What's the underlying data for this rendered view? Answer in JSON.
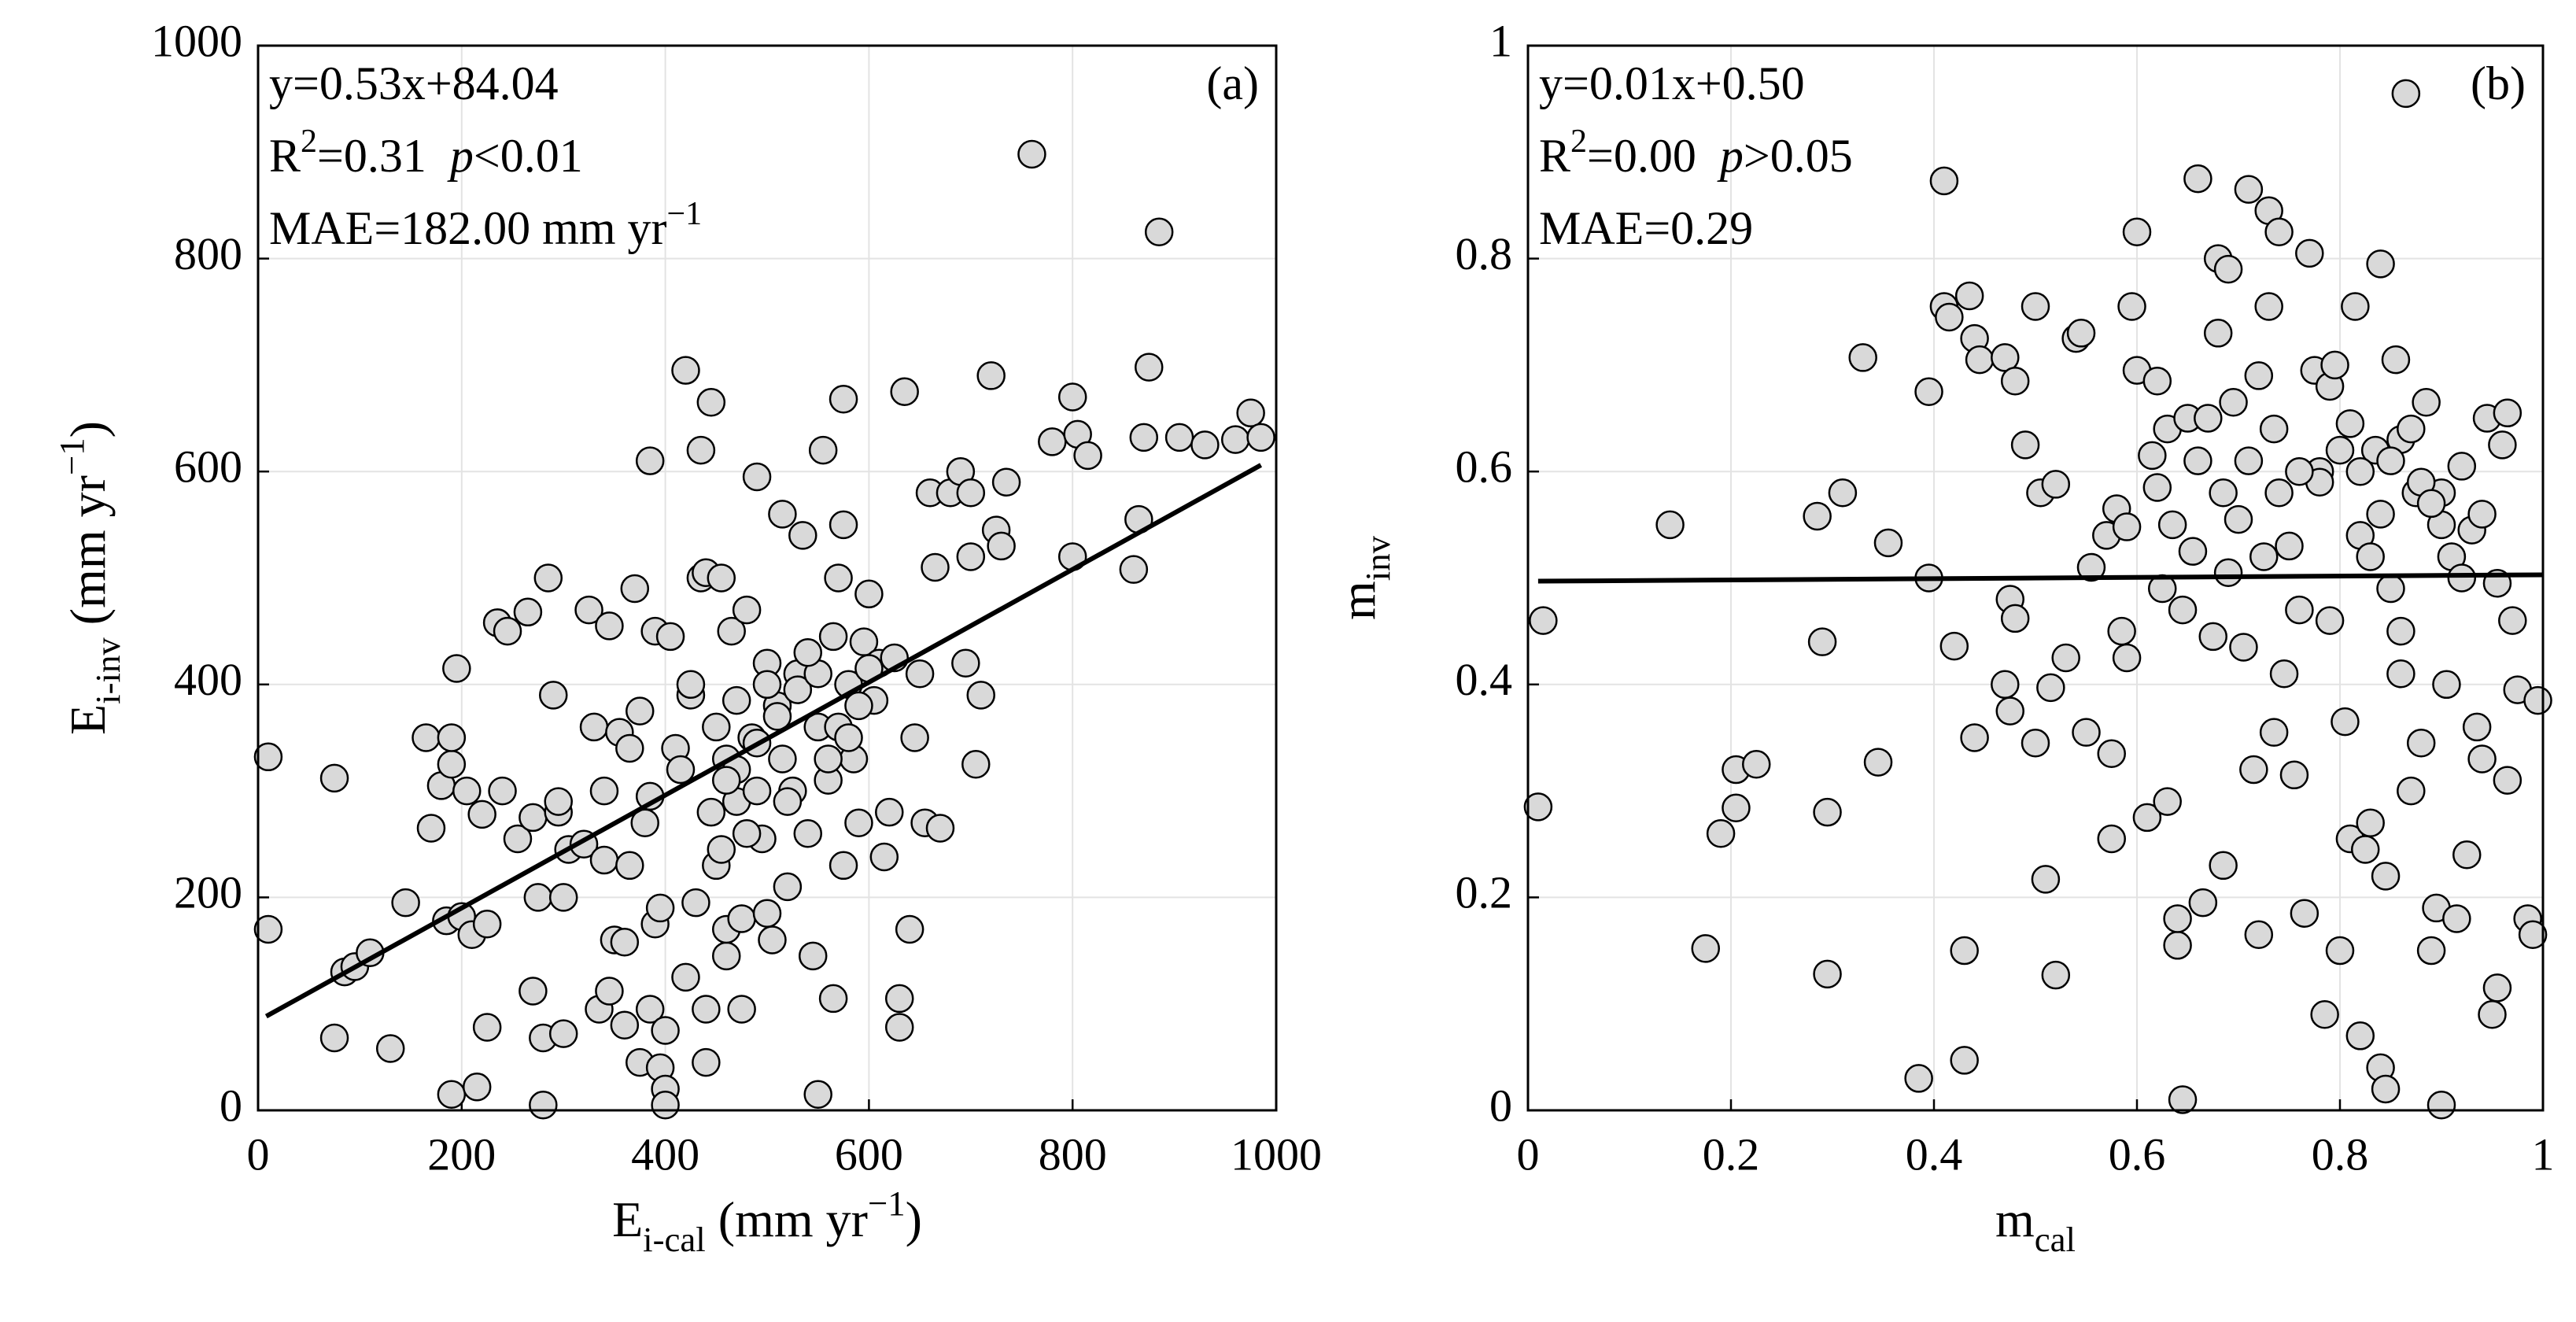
{
  "chart_data": [
    {
      "type": "scatter",
      "panel_label": "(a)",
      "annotations": [
        [
          {
            "text": "y=0.53x+84.04"
          }
        ],
        [
          {
            "text": "R"
          },
          {
            "text": "2",
            "style": "sup"
          },
          {
            "text": "=0.31  "
          },
          {
            "text": "p",
            "style": "italic"
          },
          {
            "text": "<0.01"
          }
        ],
        [
          {
            "text": "MAE=182.00 mm yr"
          },
          {
            "text": "−1",
            "style": "sup"
          }
        ]
      ],
      "xlabel": [
        {
          "text": "E"
        },
        {
          "text": "i-cal",
          "style": "sub"
        },
        {
          "text": " (mm yr"
        },
        {
          "text": "−1",
          "style": "sup"
        },
        {
          "text": ")"
        }
      ],
      "ylabel": [
        {
          "text": "E"
        },
        {
          "text": "i-inv",
          "style": "sub"
        },
        {
          "text": " (mm yr"
        },
        {
          "text": "−1",
          "style": "sup"
        },
        {
          "text": ")"
        }
      ],
      "xlim": [
        0,
        1000
      ],
      "ylim": [
        0,
        1000
      ],
      "xticks": [
        0,
        200,
        400,
        600,
        800,
        1000
      ],
      "yticks": [
        0,
        200,
        400,
        600,
        800,
        1000
      ],
      "grid": true,
      "marker_color": "#d9d9d9",
      "fit": {
        "x": [
          8,
          985
        ],
        "values": [
          88.28,
          606.09
        ],
        "color": "#000000"
      },
      "series": [
        {
          "x": [
            10,
            10,
            75,
            75,
            85,
            95,
            110,
            130,
            145,
            165,
            170,
            180,
            185,
            190,
            190,
            190,
            195,
            200,
            205,
            210,
            215,
            220,
            225,
            225,
            235,
            240,
            245,
            255,
            265,
            270,
            270,
            275,
            280,
            280,
            285,
            290,
            295,
            295,
            300,
            300,
            305,
            320,
            325,
            330,
            335,
            340,
            340,
            345,
            345,
            350,
            355,
            360,
            360,
            365,
            365,
            370,
            375,
            375,
            380,
            385,
            385,
            385,
            390,
            390,
            395,
            395,
            400,
            400,
            400,
            405,
            410,
            415,
            420,
            420,
            425,
            425,
            430,
            435,
            435,
            440,
            440,
            440,
            445,
            445,
            450,
            450,
            455,
            455,
            460,
            460,
            460,
            465,
            470,
            470,
            475,
            475,
            480,
            485,
            490,
            490,
            495,
            500,
            500,
            505,
            510,
            515,
            515,
            520,
            525,
            530,
            535,
            540,
            545,
            550,
            550,
            555,
            560,
            565,
            565,
            570,
            575,
            575,
            575,
            580,
            585,
            590,
            595,
            600,
            605,
            610,
            615,
            620,
            625,
            630,
            630,
            635,
            640,
            645,
            650,
            655,
            660,
            665,
            670,
            680,
            690,
            695,
            700,
            700,
            705,
            710,
            720,
            725,
            730,
            735,
            760,
            780,
            800,
            800,
            805,
            815,
            860,
            865,
            870,
            875,
            885,
            905,
            930,
            960,
            975,
            985,
            470,
            490,
            510,
            530,
            550,
            570,
            590,
            480,
            520,
            560,
            500,
            540,
            580,
            460,
            600
          ],
          "values": [
            332,
            170,
            312,
            68,
            130,
            135,
            148,
            58,
            195,
            350,
            265,
            305,
            178,
            15,
            325,
            350,
            415,
            182,
            300,
            165,
            22,
            278,
            78,
            175,
            458,
            300,
            450,
            255,
            468,
            112,
            275,
            200,
            5,
            68,
            500,
            390,
            280,
            290,
            200,
            72,
            245,
            250,
            470,
            360,
            95,
            235,
            300,
            455,
            112,
            160,
            355,
            80,
            158,
            340,
            230,
            490,
            45,
            375,
            270,
            295,
            610,
            95,
            175,
            450,
            190,
            40,
            20,
            5,
            75,
            445,
            340,
            320,
            695,
            125,
            390,
            400,
            195,
            620,
            500,
            45,
            95,
            505,
            665,
            280,
            230,
            360,
            245,
            500,
            145,
            170,
            330,
            450,
            290,
            385,
            95,
            180,
            470,
            350,
            300,
            595,
            255,
            185,
            420,
            160,
            380,
            560,
            330,
            210,
            300,
            410,
            540,
            260,
            145,
            15,
            360,
            620,
            310,
            445,
            105,
            500,
            230,
            550,
            668,
            400,
            330,
            270,
            440,
            485,
            385,
            420,
            238,
            280,
            425,
            105,
            78,
            675,
            170,
            350,
            410,
            270,
            580,
            510,
            265,
            580,
            600,
            420,
            580,
            520,
            325,
            390,
            690,
            545,
            530,
            590,
            898,
            628,
            520,
            670,
            635,
            615,
            508,
            555,
            632,
            698,
            825,
            632,
            625,
            630,
            655,
            632,
            320,
            345,
            370,
            395,
            410,
            360,
            380,
            260,
            290,
            330,
            400,
            430,
            350,
            310,
            415
          ]
        }
      ]
    },
    {
      "type": "scatter",
      "panel_label": "(b)",
      "annotations": [
        [
          {
            "text": "y=0.01x+0.50"
          }
        ],
        [
          {
            "text": "R"
          },
          {
            "text": "2",
            "style": "sup"
          },
          {
            "text": "=0.00  "
          },
          {
            "text": "p",
            "style": "italic"
          },
          {
            "text": ">0.05"
          }
        ],
        [
          {
            "text": "MAE=0.29"
          }
        ]
      ],
      "xlabel": [
        {
          "text": "m"
        },
        {
          "text": "cal",
          "style": "sub"
        }
      ],
      "ylabel": [
        {
          "text": "m"
        },
        {
          "text": "inv",
          "style": "sub"
        }
      ],
      "xlim": [
        0,
        1
      ],
      "ylim": [
        0,
        1
      ],
      "xticks": [
        0,
        0.2,
        0.4,
        0.6,
        0.8,
        1
      ],
      "yticks": [
        0,
        0.2,
        0.4,
        0.6,
        0.8,
        1
      ],
      "grid": true,
      "marker_color": "#d9d9d9",
      "fit": {
        "x": [
          0.01,
          1
        ],
        "values": [
          0.497,
          0.503
        ],
        "color": "#000000"
      },
      "series": [
        {
          "x": [
            0.01,
            0.015,
            0.14,
            0.175,
            0.19,
            0.205,
            0.205,
            0.225,
            0.285,
            0.29,
            0.295,
            0.295,
            0.31,
            0.33,
            0.345,
            0.355,
            0.385,
            0.395,
            0.395,
            0.41,
            0.41,
            0.415,
            0.42,
            0.43,
            0.43,
            0.435,
            0.44,
            0.44,
            0.445,
            0.47,
            0.47,
            0.475,
            0.475,
            0.48,
            0.48,
            0.49,
            0.5,
            0.5,
            0.505,
            0.51,
            0.515,
            0.52,
            0.52,
            0.53,
            0.54,
            0.545,
            0.55,
            0.555,
            0.57,
            0.575,
            0.575,
            0.58,
            0.585,
            0.59,
            0.59,
            0.595,
            0.6,
            0.6,
            0.61,
            0.615,
            0.62,
            0.62,
            0.625,
            0.63,
            0.63,
            0.635,
            0.64,
            0.64,
            0.645,
            0.645,
            0.65,
            0.655,
            0.66,
            0.66,
            0.665,
            0.67,
            0.675,
            0.68,
            0.68,
            0.685,
            0.685,
            0.69,
            0.69,
            0.695,
            0.7,
            0.705,
            0.71,
            0.71,
            0.715,
            0.72,
            0.72,
            0.725,
            0.73,
            0.73,
            0.735,
            0.735,
            0.74,
            0.74,
            0.745,
            0.75,
            0.755,
            0.76,
            0.765,
            0.77,
            0.775,
            0.78,
            0.785,
            0.79,
            0.79,
            0.795,
            0.8,
            0.805,
            0.81,
            0.81,
            0.815,
            0.82,
            0.82,
            0.825,
            0.83,
            0.835,
            0.84,
            0.84,
            0.845,
            0.845,
            0.85,
            0.855,
            0.86,
            0.865,
            0.87,
            0.875,
            0.88,
            0.885,
            0.89,
            0.895,
            0.9,
            0.9,
            0.905,
            0.91,
            0.915,
            0.92,
            0.925,
            0.93,
            0.935,
            0.94,
            0.945,
            0.95,
            0.955,
            0.955,
            0.96,
            0.965,
            0.965,
            0.97,
            0.975,
            0.985,
            0.99,
            0.995,
            0.82,
            0.84,
            0.86,
            0.88,
            0.9,
            0.83,
            0.85,
            0.87,
            0.89,
            0.8,
            0.78,
            0.76,
            0.92,
            0.94,
            0.86
          ],
          "values": [
            0.285,
            0.46,
            0.55,
            0.152,
            0.26,
            0.32,
            0.284,
            0.325,
            0.558,
            0.44,
            0.28,
            0.128,
            0.58,
            0.707,
            0.327,
            0.533,
            0.03,
            0.675,
            0.5,
            0.755,
            0.873,
            0.745,
            0.436,
            0.15,
            0.047,
            0.765,
            0.725,
            0.35,
            0.705,
            0.4,
            0.707,
            0.375,
            0.48,
            0.685,
            0.462,
            0.625,
            0.755,
            0.345,
            0.58,
            0.217,
            0.397,
            0.127,
            0.588,
            0.425,
            0.725,
            0.73,
            0.355,
            0.51,
            0.54,
            0.255,
            0.335,
            0.565,
            0.45,
            0.548,
            0.425,
            0.755,
            0.825,
            0.695,
            0.275,
            0.615,
            0.585,
            0.685,
            0.49,
            0.29,
            0.64,
            0.55,
            0.155,
            0.18,
            0.01,
            0.47,
            0.65,
            0.525,
            0.875,
            0.61,
            0.195,
            0.65,
            0.445,
            0.8,
            0.73,
            0.23,
            0.58,
            0.79,
            0.505,
            0.665,
            0.555,
            0.435,
            0.865,
            0.61,
            0.32,
            0.165,
            0.69,
            0.52,
            0.845,
            0.755,
            0.355,
            0.64,
            0.825,
            0.58,
            0.41,
            0.53,
            0.315,
            0.47,
            0.185,
            0.805,
            0.695,
            0.6,
            0.09,
            0.68,
            0.46,
            0.7,
            0.15,
            0.365,
            0.645,
            0.255,
            0.755,
            0.07,
            0.54,
            0.245,
            0.27,
            0.62,
            0.795,
            0.04,
            0.22,
            0.02,
            0.49,
            0.705,
            0.41,
            0.955,
            0.3,
            0.58,
            0.345,
            0.665,
            0.15,
            0.19,
            0.005,
            0.58,
            0.4,
            0.52,
            0.18,
            0.605,
            0.24,
            0.545,
            0.36,
            0.33,
            0.65,
            0.09,
            0.115,
            0.495,
            0.625,
            0.31,
            0.655,
            0.46,
            0.395,
            0.18,
            0.165,
            0.385,
            0.6,
            0.56,
            0.63,
            0.59,
            0.55,
            0.52,
            0.61,
            0.64,
            0.57,
            0.62,
            0.59,
            0.6,
            0.5,
            0.56,
            0.45
          ]
        }
      ]
    }
  ]
}
